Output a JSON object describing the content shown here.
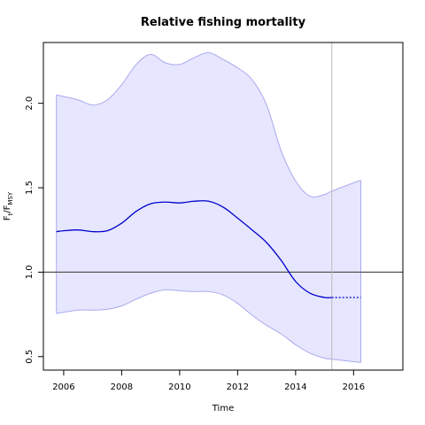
{
  "chart_data": {
    "type": "line",
    "title": "Relative fishing mortality",
    "xlabel": "Time",
    "ylabel": {
      "base": "F",
      "sub1": "t",
      "sep": "/F",
      "sub2": "MSY"
    },
    "xlim": [
      2005.3,
      2017.7
    ],
    "ylim": [
      0.42,
      2.36
    ],
    "x_ticks": [
      2006,
      2008,
      2010,
      2012,
      2014,
      2016
    ],
    "y_ticks": [
      0.5,
      1.0,
      1.5,
      2.0
    ],
    "x_tick_labels": [
      "2006",
      "2008",
      "2010",
      "2012",
      "2014",
      "2016"
    ],
    "y_tick_labels": [
      "0.5",
      "1.0",
      "1.5",
      "2.0"
    ],
    "reference_line_y": 1.0,
    "vertical_line_x": 2015.25,
    "grid": false,
    "colors": {
      "estimate": "#0000cc",
      "band_fill": "#e6e6ff",
      "band_edge": "#aaaaee",
      "reference": "#555555",
      "vline": "#bbbbbb"
    },
    "series": [
      {
        "role": "estimate",
        "x": [
          2005.75,
          2006.0,
          2006.5,
          2007.0,
          2007.5,
          2008.0,
          2008.5,
          2009.0,
          2009.5,
          2010.0,
          2010.5,
          2011.0,
          2011.5,
          2012.0,
          2012.5,
          2013.0,
          2013.5,
          2014.0,
          2014.5,
          2015.0,
          2015.25
        ],
        "y": [
          1.24,
          1.245,
          1.25,
          1.24,
          1.245,
          1.29,
          1.36,
          1.405,
          1.415,
          1.41,
          1.42,
          1.42,
          1.385,
          1.32,
          1.25,
          1.175,
          1.07,
          0.945,
          0.875,
          0.85,
          0.85
        ]
      },
      {
        "role": "projection",
        "x": [
          2015.25,
          2016.25
        ],
        "y": [
          0.85,
          0.85
        ]
      },
      {
        "role": "upper_ci",
        "x": [
          2005.75,
          2006.5,
          2007.0,
          2007.5,
          2008.0,
          2008.5,
          2009.0,
          2009.5,
          2010.0,
          2010.5,
          2011.0,
          2011.5,
          2012.0,
          2012.5,
          2013.0,
          2013.5,
          2014.0,
          2014.5,
          2015.0,
          2015.25,
          2016.25
        ],
        "y": [
          2.05,
          2.02,
          1.99,
          2.02,
          2.11,
          2.23,
          2.29,
          2.24,
          2.23,
          2.27,
          2.3,
          2.26,
          2.21,
          2.14,
          1.99,
          1.72,
          1.54,
          1.45,
          1.46,
          1.48,
          1.545
        ]
      },
      {
        "role": "lower_ci",
        "x": [
          2005.75,
          2006.5,
          2007.0,
          2007.5,
          2008.0,
          2008.5,
          2009.0,
          2009.5,
          2010.0,
          2010.5,
          2011.0,
          2011.5,
          2012.0,
          2012.5,
          2013.0,
          2013.5,
          2014.0,
          2014.5,
          2015.0,
          2015.25,
          2016.25
        ],
        "y": [
          0.755,
          0.775,
          0.775,
          0.78,
          0.8,
          0.84,
          0.875,
          0.895,
          0.89,
          0.885,
          0.885,
          0.865,
          0.815,
          0.745,
          0.685,
          0.635,
          0.57,
          0.52,
          0.49,
          0.485,
          0.465
        ]
      }
    ]
  }
}
